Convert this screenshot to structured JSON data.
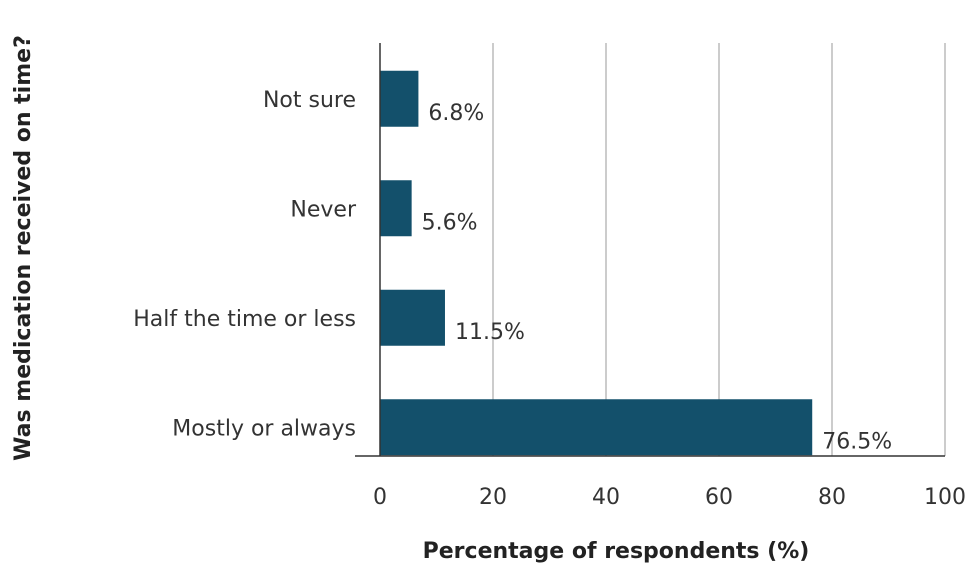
{
  "chart_data": {
    "type": "bar",
    "orientation": "horizontal",
    "categories": [
      "Not sure",
      "Never",
      "Half the time or less",
      "Mostly or always"
    ],
    "values": [
      6.8,
      5.6,
      11.5,
      76.5
    ],
    "value_labels": [
      "6.8%",
      "5.6%",
      "11.5%",
      "76.5%"
    ],
    "title": "",
    "xlabel": "Percentage of respondents (%)",
    "ylabel": "Was medication received on time?",
    "xlim": [
      0,
      100
    ],
    "xticks": [
      0,
      20,
      40,
      60,
      80,
      100
    ],
    "grid": "vertical",
    "legend": "none",
    "bar_color": "#13506b",
    "grid_color": "#9a9a9a",
    "axis_color": "#333333"
  }
}
